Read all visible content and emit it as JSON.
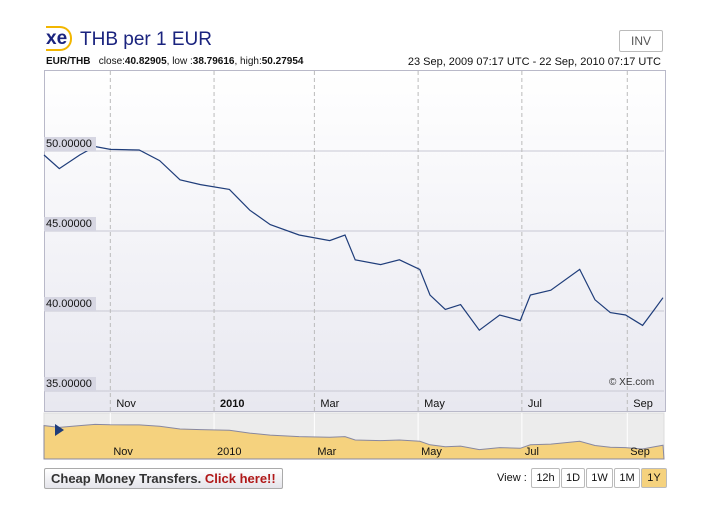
{
  "header": {
    "logo": "xe",
    "title": "THB per 1 EUR",
    "inv_label": "INV",
    "pair": "EUR/THB",
    "close_label": "close:",
    "close": "40.82905",
    "low_label": ", low :",
    "low": "38.79616",
    "high_label": ", high:",
    "high": "50.27954",
    "range": "23 Sep, 2009 07:17 UTC - 22 Sep, 2010 07:17 UTC"
  },
  "chart_data": {
    "type": "line",
    "title": "THB per 1 EUR",
    "xlabel": "",
    "ylabel": "",
    "ylim": [
      35,
      54.5
    ],
    "xlim": [
      "2009-09-23",
      "2010-09-22"
    ],
    "y_ticks": [
      "50.00000",
      "45.00000",
      "40.00000",
      "35.00000"
    ],
    "x_ticks": [
      {
        "label": "Nov",
        "date": "2009-11-01"
      },
      {
        "label": "2010",
        "date": "2010-01-01"
      },
      {
        "label": "Mar",
        "date": "2010-03-01"
      },
      {
        "label": "May",
        "date": "2010-05-01"
      },
      {
        "label": "Jul",
        "date": "2010-07-01"
      },
      {
        "label": "Sep",
        "date": "2010-09-01"
      }
    ],
    "series": [
      {
        "name": "EUR/THB",
        "color": "#1f3d7a",
        "points": [
          [
            "2009-09-23",
            49.75
          ],
          [
            "2009-10-02",
            48.9
          ],
          [
            "2009-10-14",
            49.75
          ],
          [
            "2009-10-23",
            50.28
          ],
          [
            "2009-11-01",
            50.1
          ],
          [
            "2009-11-18",
            50.06
          ],
          [
            "2009-11-30",
            49.4
          ],
          [
            "2009-12-12",
            48.2
          ],
          [
            "2009-12-24",
            47.9
          ],
          [
            "2010-01-10",
            47.6
          ],
          [
            "2010-01-22",
            46.3
          ],
          [
            "2010-02-03",
            45.4
          ],
          [
            "2010-02-20",
            44.75
          ],
          [
            "2010-03-10",
            44.4
          ],
          [
            "2010-03-19",
            44.75
          ],
          [
            "2010-03-25",
            43.2
          ],
          [
            "2010-04-09",
            42.9
          ],
          [
            "2010-04-20",
            43.2
          ],
          [
            "2010-05-02",
            42.6
          ],
          [
            "2010-05-08",
            41.0
          ],
          [
            "2010-05-17",
            40.1
          ],
          [
            "2010-05-26",
            40.4
          ],
          [
            "2010-06-06",
            38.8
          ],
          [
            "2010-06-18",
            39.75
          ],
          [
            "2010-06-30",
            39.4
          ],
          [
            "2010-07-06",
            41.0
          ],
          [
            "2010-07-18",
            41.3
          ],
          [
            "2010-08-04",
            42.6
          ],
          [
            "2010-08-13",
            40.7
          ],
          [
            "2010-08-22",
            39.9
          ],
          [
            "2010-08-31",
            39.75
          ],
          [
            "2010-09-10",
            39.1
          ],
          [
            "2010-09-17",
            40.1
          ],
          [
            "2010-09-22",
            40.83
          ]
        ]
      }
    ],
    "grid": true
  },
  "copyright": "© XE.com",
  "promo": {
    "text": "Cheap Money Transfers.",
    "link": "Click here!!"
  },
  "view": {
    "label": "View :",
    "buttons": [
      "12h",
      "1D",
      "1W",
      "1M",
      "1Y"
    ],
    "active": "1Y"
  },
  "colors": {
    "line": "#1f3d7a",
    "mini_fill": "#f5d27e",
    "accent": "#f2b600"
  }
}
